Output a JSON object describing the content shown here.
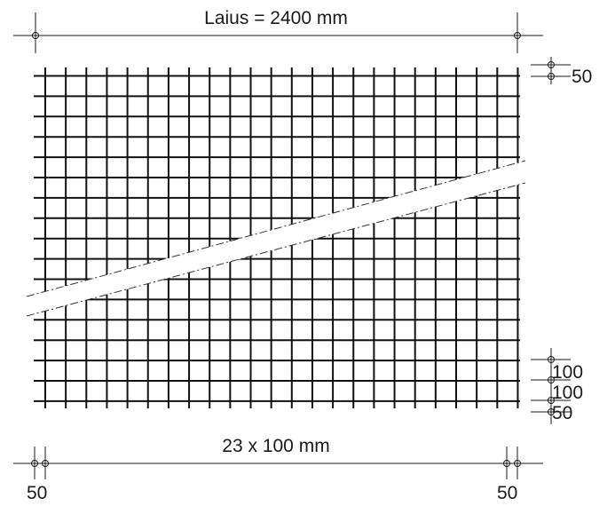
{
  "drawing": {
    "top_dimension": "Laius = 2400 mm",
    "bottom_dimension": "23 x 100 mm",
    "right_labels": {
      "top_edge": "50",
      "spacing_1": "100",
      "spacing_2": "100",
      "bottom_edge": "50"
    },
    "bottom_labels": {
      "left_edge": "50",
      "right_edge": "50"
    }
  },
  "colors": {
    "line": "#111111",
    "background": "#ffffff",
    "cut_fill": "#ffffff"
  }
}
